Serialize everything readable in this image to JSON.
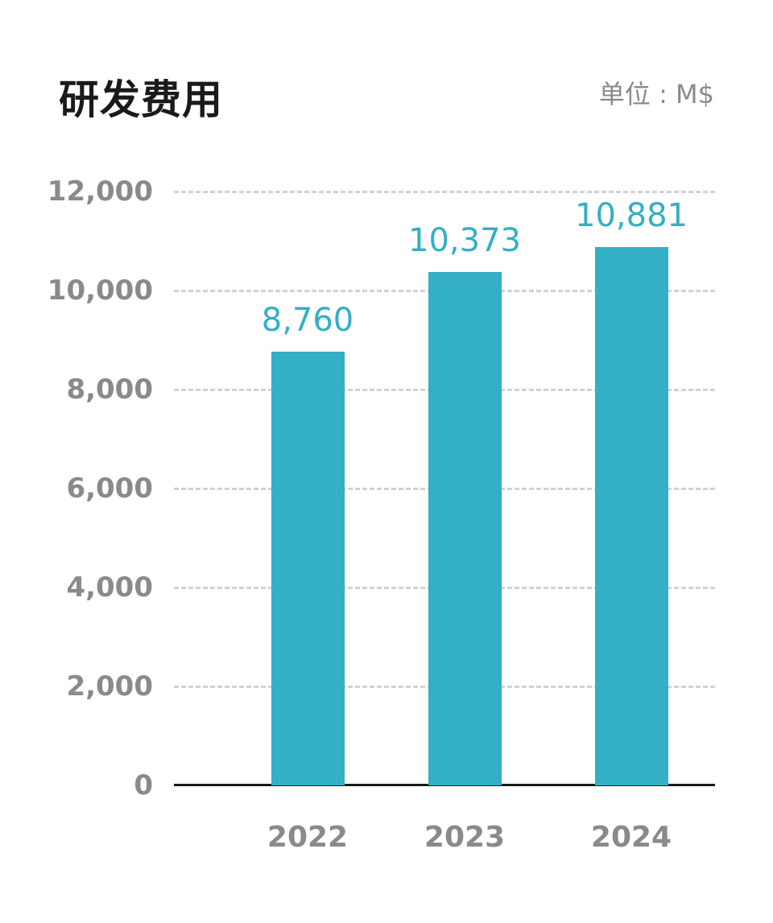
{
  "header": {
    "title": "研发费用",
    "unit": "单位 : M$"
  },
  "chart_data": {
    "type": "bar",
    "title": "研发费用",
    "unit_label": "单位 : M$",
    "categories": [
      "2022",
      "2023",
      "2024"
    ],
    "values": [
      8760,
      10373,
      10881
    ],
    "value_labels": [
      "8,760",
      "10,373",
      "10,881"
    ],
    "xlabel": "",
    "ylabel": "",
    "ylim": [
      0,
      12000
    ],
    "yticks": [
      0,
      2000,
      4000,
      6000,
      8000,
      10000,
      12000
    ],
    "ytick_labels": [
      "0",
      "2,000",
      "4,000",
      "6,000",
      "8,000",
      "10,000",
      "12,000"
    ],
    "grid": "horizontal dashed",
    "legend": "none",
    "bar_color": "#33afc6"
  }
}
